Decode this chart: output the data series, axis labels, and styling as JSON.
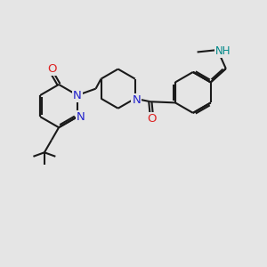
{
  "background_color": "#e5e5e5",
  "bond_color": "#1a1a1a",
  "nitrogen_color": "#2222cc",
  "oxygen_color": "#dd2222",
  "nh_color": "#008888",
  "line_width": 1.5,
  "figsize": [
    3.0,
    3.0
  ],
  "dpi": 100,
  "xlim": [
    0,
    10
  ],
  "ylim": [
    0,
    10
  ]
}
